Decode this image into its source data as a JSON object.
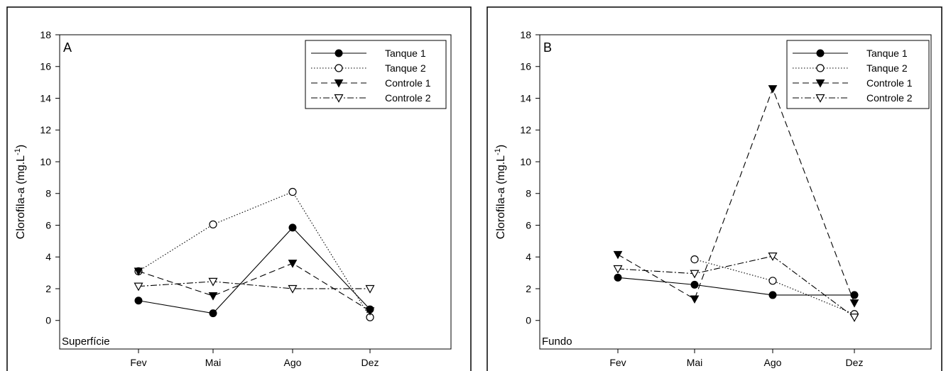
{
  "chart_data": [
    {
      "type": "line",
      "panel_label": "A",
      "depth_label": "Superfície",
      "ylabel": "Clorofila-a (mg.L",
      "ylabel_superscript": "-1",
      "ylabel_close": ")",
      "ylim": [
        -1.8,
        18
      ],
      "yticks": [
        0,
        2,
        4,
        6,
        8,
        10,
        12,
        14,
        16,
        18
      ],
      "categories": [
        "Fev",
        "Mai",
        "Ago",
        "Dez"
      ],
      "series": [
        {
          "name": "Tanque 1",
          "values": [
            1.25,
            0.45,
            5.85,
            0.7
          ],
          "marker": "filled-circle",
          "dash": "solid"
        },
        {
          "name": "Tanque 2",
          "values": [
            3.1,
            6.05,
            8.1,
            0.2
          ],
          "marker": "open-circle",
          "dash": "dotted"
        },
        {
          "name": "Controle 1",
          "values": [
            3.1,
            1.55,
            3.6,
            0.6
          ],
          "marker": "filled-triangle-down",
          "dash": "dashed"
        },
        {
          "name": "Controle 2",
          "values": [
            2.15,
            2.45,
            2.0,
            2.0
          ],
          "marker": "open-triangle-down",
          "dash": "dashdot"
        }
      ],
      "legend_position": "top-right"
    },
    {
      "type": "line",
      "panel_label": "B",
      "depth_label": "Fundo",
      "ylabel": "Clorofila-a (mg.L",
      "ylabel_superscript": "-1",
      "ylabel_close": ")",
      "ylim": [
        -1.8,
        18
      ],
      "yticks": [
        0,
        2,
        4,
        6,
        8,
        10,
        12,
        14,
        16,
        18
      ],
      "categories": [
        "Fev",
        "Mai",
        "Ago",
        "Dez"
      ],
      "series": [
        {
          "name": "Tanque 1",
          "values": [
            2.7,
            2.25,
            1.6,
            1.6
          ],
          "marker": "filled-circle",
          "dash": "solid"
        },
        {
          "name": "Tanque 2",
          "values": [
            null,
            3.85,
            2.5,
            0.4
          ],
          "marker": "open-circle",
          "dash": "dotted"
        },
        {
          "name": "Controle 1",
          "values": [
            4.15,
            1.35,
            14.6,
            1.1
          ],
          "marker": "filled-triangle-down",
          "dash": "dashed"
        },
        {
          "name": "Controle 2",
          "values": [
            3.25,
            2.95,
            4.05,
            0.2
          ],
          "marker": "open-triangle-down",
          "dash": "dashdot"
        }
      ],
      "legend_position": "top-right"
    }
  ]
}
